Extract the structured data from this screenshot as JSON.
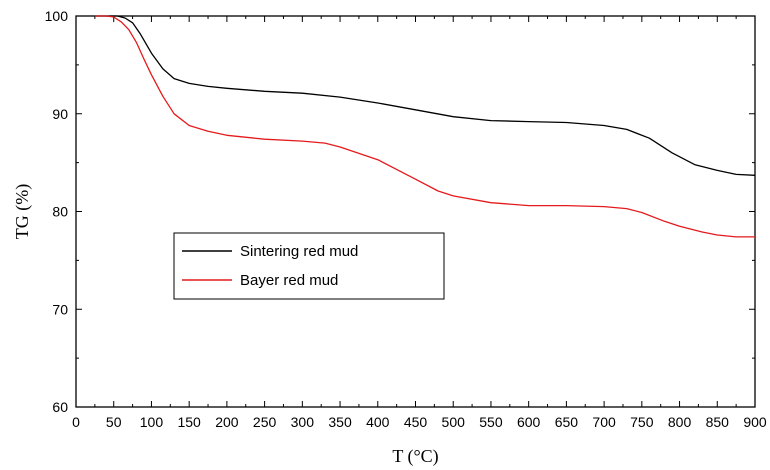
{
  "chart_data": {
    "type": "line",
    "title": "",
    "xlabel": "T (°C)",
    "ylabel": "TG (%)",
    "xlim": [
      0,
      900
    ],
    "ylim": [
      60,
      100
    ],
    "xticks": [
      0,
      50,
      100,
      150,
      200,
      250,
      300,
      350,
      400,
      450,
      500,
      550,
      600,
      650,
      700,
      750,
      800,
      850,
      900
    ],
    "yticks": [
      60,
      70,
      80,
      90,
      100
    ],
    "grid": false,
    "legend_position": "lower-left",
    "series": [
      {
        "name": "Sintering red mud",
        "color": "#000000",
        "x": [
          25,
          40,
          55,
          65,
          75,
          85,
          100,
          115,
          130,
          150,
          175,
          200,
          250,
          300,
          350,
          400,
          450,
          500,
          550,
          600,
          650,
          700,
          730,
          760,
          790,
          820,
          850,
          875,
          900
        ],
        "y": [
          100,
          100,
          100,
          99.8,
          99.3,
          98.2,
          96.2,
          94.6,
          93.6,
          93.1,
          92.8,
          92.6,
          92.3,
          92.1,
          91.7,
          91.1,
          90.4,
          89.7,
          89.3,
          89.2,
          89.1,
          88.8,
          88.4,
          87.5,
          86.0,
          84.8,
          84.2,
          83.8,
          83.7
        ]
      },
      {
        "name": "Bayer red mud",
        "color": "#e41a1c",
        "x": [
          25,
          40,
          50,
          60,
          70,
          80,
          90,
          100,
          115,
          130,
          150,
          175,
          200,
          250,
          300,
          330,
          350,
          400,
          450,
          480,
          500,
          550,
          600,
          650,
          700,
          730,
          750,
          780,
          800,
          830,
          850,
          875,
          900
        ],
        "y": [
          100,
          100,
          99.9,
          99.4,
          98.6,
          97.3,
          95.6,
          94.0,
          91.8,
          90.0,
          88.8,
          88.2,
          87.8,
          87.4,
          87.2,
          87.0,
          86.6,
          85.3,
          83.3,
          82.1,
          81.6,
          80.9,
          80.6,
          80.6,
          80.5,
          80.3,
          79.9,
          79.0,
          78.5,
          77.9,
          77.6,
          77.4,
          77.4
        ]
      }
    ]
  }
}
